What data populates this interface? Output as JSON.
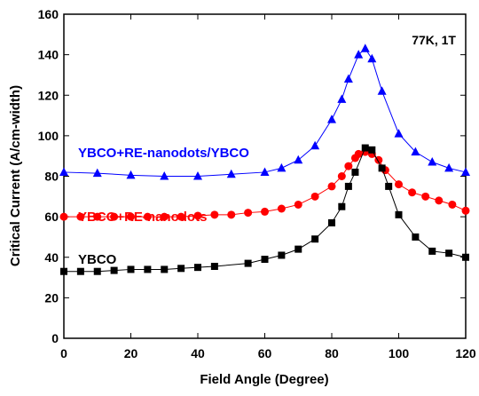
{
  "chart_data": {
    "type": "line",
    "xlabel": "Field Angle (Degree)",
    "ylabel": "Critical Current (A/cm-width)",
    "annotation": "77K, 1T",
    "xlim": [
      0,
      120
    ],
    "xticks": [
      0,
      20,
      40,
      60,
      80,
      100,
      120
    ],
    "ylim": [
      0,
      160
    ],
    "yticks": [
      0,
      20,
      40,
      60,
      80,
      100,
      120,
      140,
      160
    ],
    "series": [
      {
        "name": "YBCO+RE-nanodots/YBCO",
        "color": "#0000ff",
        "marker": "triangle",
        "x": [
          0,
          10,
          20,
          30,
          40,
          50,
          60,
          65,
          70,
          75,
          80,
          83,
          85,
          88,
          90,
          92,
          95,
          100,
          105,
          110,
          115,
          120
        ],
        "values": [
          82,
          81.5,
          80.5,
          80,
          80,
          81,
          82,
          84,
          88,
          95,
          108,
          118,
          128,
          140,
          143,
          138,
          122,
          101,
          92,
          87,
          84,
          82
        ]
      },
      {
        "name": "YBCO+RE-nanodots",
        "color": "#ff0000",
        "marker": "circle",
        "x": [
          0,
          5,
          10,
          15,
          20,
          25,
          30,
          35,
          40,
          45,
          50,
          55,
          60,
          65,
          70,
          75,
          80,
          83,
          85,
          87,
          88,
          90,
          92,
          94,
          96,
          100,
          104,
          108,
          112,
          116,
          120
        ],
        "values": [
          60,
          60,
          60,
          60,
          60,
          60,
          60,
          60,
          60.5,
          61,
          61,
          62,
          62.5,
          64,
          66,
          70,
          75,
          80,
          85,
          89,
          91,
          92,
          91,
          88,
          83,
          76,
          72,
          70,
          68,
          66,
          63
        ]
      },
      {
        "name": "YBCO",
        "color": "#000000",
        "marker": "square",
        "x": [
          0,
          5,
          10,
          15,
          20,
          25,
          30,
          35,
          40,
          45,
          55,
          60,
          65,
          70,
          75,
          80,
          83,
          85,
          87,
          90,
          92,
          95,
          97,
          100,
          105,
          110,
          115,
          120
        ],
        "values": [
          33,
          33,
          33,
          33.5,
          34,
          34,
          34,
          34.5,
          35,
          35.5,
          37,
          39,
          41,
          44,
          49,
          57,
          65,
          75,
          82,
          94,
          93,
          84,
          75,
          61,
          50,
          43,
          42,
          40
        ]
      }
    ]
  }
}
